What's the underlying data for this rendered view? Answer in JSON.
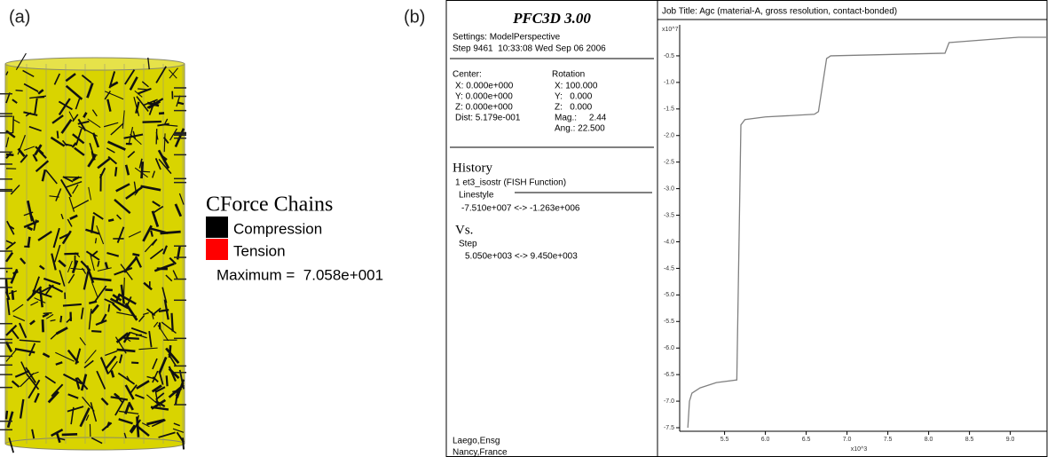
{
  "panel_a": {
    "label": "(a)",
    "legend": {
      "title": "CForce Chains",
      "items": [
        "Compression",
        "Tension"
      ],
      "colors": [
        "#000000",
        "#ff0000"
      ],
      "maximum": "Maximum =  7.058e+001"
    }
  },
  "panel_b": {
    "label": "(b)",
    "program": "PFC3D 3.00",
    "settings": "Settings: ModelPerspective",
    "step": "Step 9461  10:33:08 Wed Sep 06 2006",
    "center": {
      "heading": "Center:",
      "lines": [
        "X: 0.000e+000",
        "Y: 0.000e+000",
        "Z: 0.000e+000",
        "Dist: 5.179e-001"
      ]
    },
    "rotation": {
      "heading": "Rotation",
      "lines": [
        "X: 100.000",
        "Y:   0.000",
        "Z:   0.000",
        "Mag.:     2.44",
        "Ang.: 22.500"
      ]
    },
    "history": {
      "heading": "History",
      "function": "1 et3_isostr (FISH Function)",
      "linestyle": "Linestyle",
      "range": "-7.510e+007 <-> -1.263e+006"
    },
    "vs": {
      "heading": "Vs.",
      "variable": "Step",
      "range": "5.050e+003 <-> 9.450e+003"
    },
    "footer": [
      "Laego,Ensg",
      "Nancy,France"
    ]
  },
  "chart_data": {
    "type": "line",
    "title": "Job Title: Agc (material-A, gross resolution, contact-bonded)",
    "y_multiplier": "x10^7",
    "x_multiplier": "x10^3",
    "x": [
      5.05,
      5.07,
      5.1,
      5.2,
      5.4,
      5.65,
      5.7,
      5.75,
      6.0,
      6.6,
      6.65,
      6.75,
      6.8,
      8.2,
      8.25,
      9.1,
      9.45
    ],
    "series": [
      {
        "color": "#808080",
        "values": [
          -7.5,
          -7.0,
          -6.85,
          -6.75,
          -6.65,
          -6.6,
          -1.8,
          -1.7,
          -1.65,
          -1.6,
          -1.55,
          -0.55,
          -0.5,
          -0.45,
          -0.25,
          -0.15,
          -0.15
        ]
      }
    ],
    "xlim": [
      4.95,
      9.45
    ],
    "ylim": [
      -7.6,
      0
    ],
    "xticks": [
      5.5,
      {
        "value": 6,
        "label": "6.0"
      },
      6.5,
      {
        "value": 7,
        "label": "7.0"
      },
      7.5,
      {
        "value": 8,
        "label": "8.0"
      },
      8.5,
      {
        "value": 9,
        "label": "9.0"
      }
    ],
    "yticks": [
      -0.5,
      {
        "value": -1,
        "label": "-1.0"
      },
      -1.5,
      {
        "value": -2,
        "label": "-2.0"
      },
      -2.5,
      {
        "value": -3,
        "label": "-3.0"
      },
      -3.5,
      {
        "value": -4,
        "label": "-4.0"
      },
      -4.5,
      {
        "value": -5,
        "label": "-5.0"
      },
      -5.5,
      {
        "value": -6,
        "label": "-6.0"
      },
      -6.5,
      {
        "value": -7,
        "label": "-7.0"
      },
      -7.5
    ]
  }
}
